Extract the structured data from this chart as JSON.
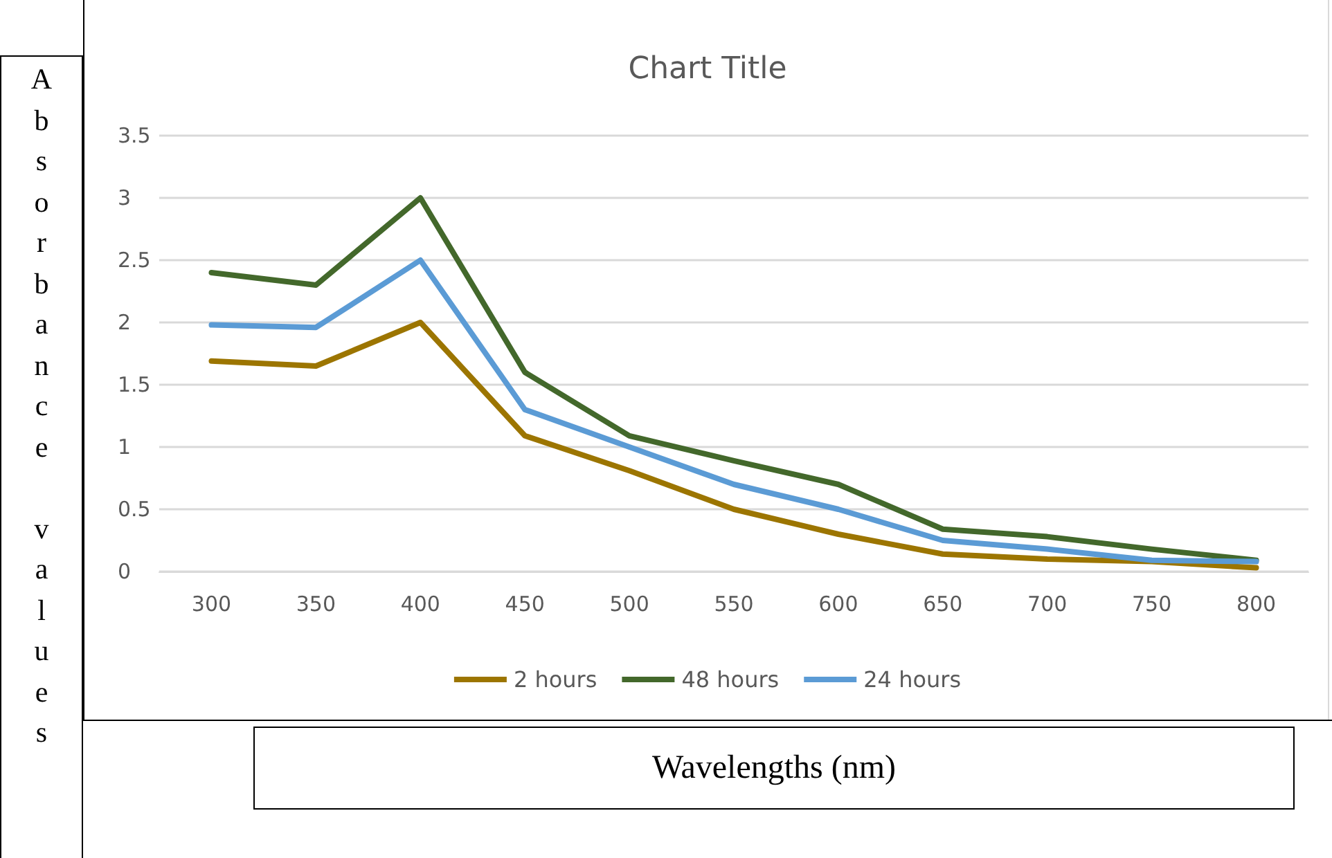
{
  "chart_data": {
    "type": "line",
    "title": "Chart Title",
    "xlabel": "Wavelengths (nm)",
    "ylabel": "Absorbance values",
    "categories": [
      "300",
      "350",
      "400",
      "450",
      "500",
      "550",
      "600",
      "650",
      "700",
      "750",
      "800"
    ],
    "series": [
      {
        "name": "2 hours",
        "color": "#9c7500",
        "values": [
          1.69,
          1.65,
          2.0,
          1.09,
          0.81,
          0.5,
          0.3,
          0.14,
          0.1,
          0.08,
          0.03
        ]
      },
      {
        "name": "48 hours",
        "color": "#43682b",
        "values": [
          2.4,
          2.3,
          3.0,
          1.6,
          1.09,
          0.89,
          0.7,
          0.34,
          0.28,
          0.18,
          0.09
        ]
      },
      {
        "name": "24 hours",
        "color": "#5b9bd5",
        "values": [
          1.98,
          1.96,
          2.5,
          1.3,
          1.0,
          0.7,
          0.5,
          0.25,
          0.18,
          0.09,
          0.08
        ]
      }
    ],
    "ylim": [
      0,
      3.5
    ],
    "yticks": [
      0,
      0.5,
      1,
      1.5,
      2,
      2.5,
      3,
      3.5
    ],
    "grid": "y",
    "legend": "bottom",
    "marker": "none",
    "line_style": "solid"
  }
}
